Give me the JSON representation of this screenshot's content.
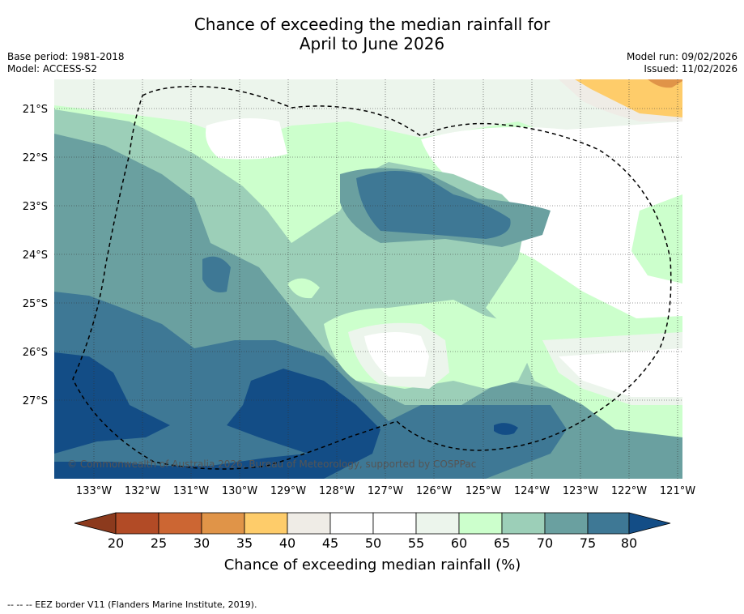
{
  "title": {
    "line1": "Chance of exceeding the median rainfall for",
    "line2": "April to June 2026"
  },
  "meta": {
    "base_period": "Base period: 1981-2018",
    "model": "Model: ACCESS-S2",
    "model_run": "Model run: 09/02/2026",
    "issued": "Issued: 11/02/2026"
  },
  "map": {
    "lon_labels": [
      "133°W",
      "132°W",
      "131°W",
      "130°W",
      "129°W",
      "128°W",
      "127°W",
      "126°W",
      "125°W",
      "124°W",
      "123°W",
      "122°W",
      "121°W"
    ],
    "lat_labels": [
      "21°S",
      "22°S",
      "23°S",
      "24°S",
      "25°S",
      "26°S",
      "27°S"
    ],
    "copyright": "© Commonwealth of Australia 2026, Bureau of Meteorology, supported by COSPPac",
    "legend_colors": {
      "20-25": "#b24b26",
      "25-30": "#cc6633",
      "30-35": "#e09448",
      "35-40": "#fecc6a",
      "40-45": "#efece6",
      "45-55": "#ffffff",
      "55-60": "#ecf5ec",
      "60-65": "#ccffcc",
      "65-70": "#9ccfb8",
      "70-75": "#6aa0a0",
      "75-80": "#3e7895",
      "80+": "#134d86",
      "below20": "#8c3a1d"
    }
  },
  "colorbar": {
    "tick_labels": [
      "20",
      "25",
      "30",
      "35",
      "40",
      "45",
      "50",
      "55",
      "60",
      "65",
      "70",
      "75",
      "80"
    ],
    "title": "Chance of exceeding median rainfall (%)"
  },
  "footnote": "--  --  -- EEZ border V11 (Flanders Marine Institute, 2019)."
}
